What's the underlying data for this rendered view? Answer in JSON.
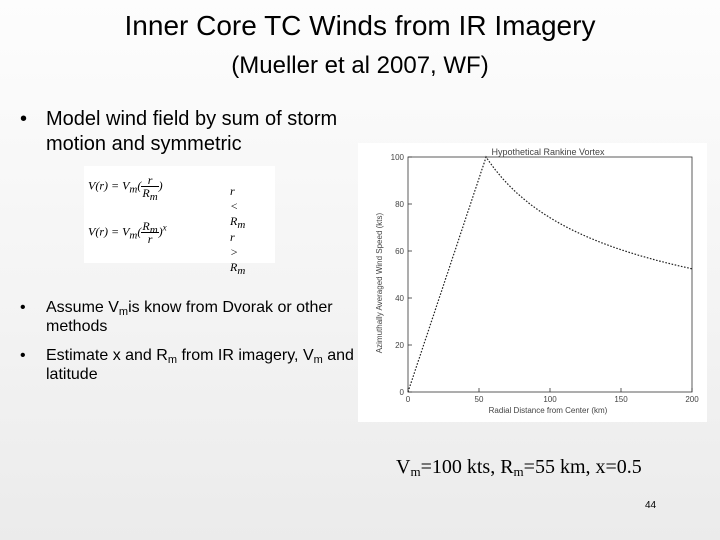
{
  "slide": {
    "title": "Inner Core TC Winds from IR Imagery",
    "subtitle": "(Mueller et al 2007, WF)",
    "page_number": "44"
  },
  "bullets": {
    "b1": {
      "dot": "•",
      "text": "Model wind field by sum of storm motion and symmetric"
    },
    "b2": {
      "dot": "•",
      "pre": "Assume V",
      "sub": "m",
      "post": "is know from Dvorak or other methods"
    },
    "b3": {
      "dot": "•",
      "pre": "Estimate x and R",
      "sub1": "m",
      "mid": " from IR imagery, V",
      "sub2": "m",
      "post": " and latitude"
    }
  },
  "equations": {
    "eq1": {
      "lhs": "V(r) = V",
      "sub": "m",
      "open": "(",
      "num": "r",
      "den": "R",
      "den_sub": "m",
      "close": ")",
      "cond": "r < R",
      "cond_sub": "m"
    },
    "eq2": {
      "lhs": "V(r) = V",
      "sub": "m",
      "open": "(",
      "num": "R",
      "num_sub": "m",
      "den": "r",
      "close": ")",
      "exp": "x",
      "cond": "r > R",
      "cond_sub": "m"
    }
  },
  "chart_data": {
    "type": "line",
    "title": "Hypothetical Rankine Vortex",
    "xlabel": "Radial Distance from Center (km)",
    "ylabel": "Azimuthally Averaged Wind Speed (kts)",
    "xlim": [
      0,
      200
    ],
    "ylim": [
      0,
      100
    ],
    "xticks": [
      "0",
      "50",
      "100",
      "150",
      "200"
    ],
    "yticks": [
      "0",
      "20",
      "40",
      "60",
      "80",
      "100"
    ],
    "series": [
      {
        "line_style": "dotted",
        "rmax": 55,
        "vmax": 100,
        "x_exponent": 0.5
      }
    ]
  },
  "params": {
    "a": "V",
    "a_sub": "m",
    "b": "=100 kts, R",
    "b_sub": "m",
    "c": "=55 km, x=0.5"
  }
}
